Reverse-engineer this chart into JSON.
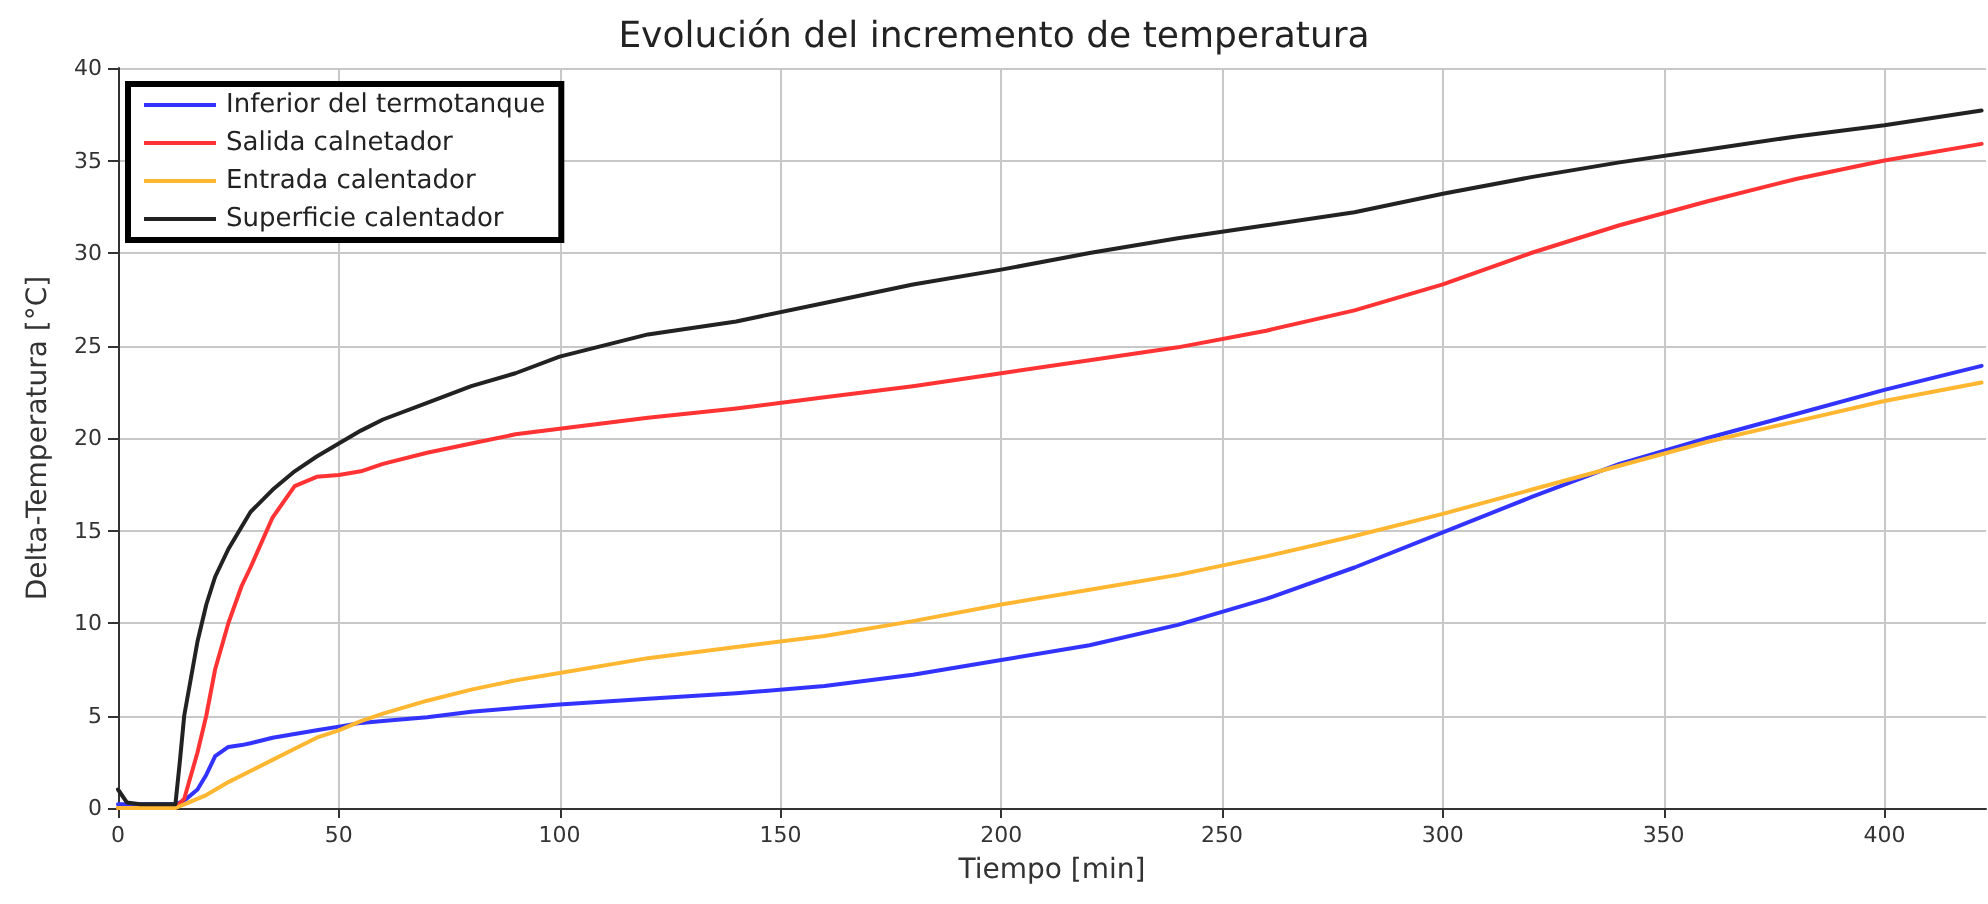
{
  "chart_data": {
    "type": "line",
    "title": "Evolución del incremento de temperatura",
    "xlabel": "Tiempo [min]",
    "ylabel": "Delta-Temperatura [°C]",
    "xlim": [
      0,
      423
    ],
    "xticks": [
      0,
      50,
      100,
      150,
      200,
      250,
      300,
      350,
      400
    ],
    "ylim": [
      0,
      40
    ],
    "yticks": [
      0,
      5,
      10,
      15,
      20,
      25,
      30,
      35,
      40
    ],
    "grid": true,
    "legend": "top left",
    "marker": "none",
    "line_style": "solid",
    "series": [
      {
        "name": "Inferior del termotanque",
        "color": "#3333ff",
        "x": [
          0,
          13,
          15,
          18,
          20,
          22,
          25,
          28,
          30,
          35,
          40,
          45,
          50,
          55,
          60,
          70,
          80,
          90,
          100,
          120,
          140,
          160,
          180,
          200,
          220,
          240,
          260,
          280,
          300,
          320,
          340,
          360,
          380,
          400,
          422
        ],
        "values": [
          0.2,
          0.2,
          0.4,
          1.0,
          1.8,
          2.8,
          3.3,
          3.4,
          3.5,
          3.8,
          4.0,
          4.2,
          4.4,
          4.6,
          4.7,
          4.9,
          5.2,
          5.4,
          5.6,
          5.9,
          6.2,
          6.6,
          7.2,
          8.0,
          8.8,
          9.9,
          11.3,
          13.0,
          14.9,
          16.8,
          18.6,
          20.0,
          21.3,
          22.6,
          23.9
        ]
      },
      {
        "name": "Salida calnetador",
        "color": "#ff3333",
        "x": [
          0,
          13,
          15,
          18,
          20,
          22,
          25,
          28,
          30,
          35,
          40,
          45,
          50,
          55,
          60,
          70,
          80,
          90,
          100,
          120,
          140,
          160,
          180,
          200,
          220,
          240,
          260,
          280,
          300,
          320,
          340,
          360,
          380,
          400,
          422
        ],
        "values": [
          0,
          0,
          0.5,
          3,
          5,
          7.5,
          10,
          12,
          13,
          15.7,
          17.4,
          17.9,
          18,
          18.2,
          18.6,
          19.2,
          19.7,
          20.2,
          20.5,
          21.1,
          21.6,
          22.2,
          22.8,
          23.5,
          24.2,
          24.9,
          25.8,
          26.9,
          28.3,
          30.0,
          31.5,
          32.8,
          34.0,
          35.0,
          35.9
        ]
      },
      {
        "name": "Entrada calentador",
        "color": "#ffb732",
        "x": [
          0,
          13,
          15,
          20,
          25,
          30,
          35,
          40,
          45,
          50,
          55,
          60,
          70,
          80,
          90,
          100,
          120,
          140,
          160,
          180,
          200,
          220,
          240,
          260,
          280,
          300,
          320,
          340,
          360,
          380,
          400,
          422
        ],
        "values": [
          0,
          0,
          0.2,
          0.7,
          1.4,
          2.0,
          2.6,
          3.2,
          3.8,
          4.2,
          4.7,
          5.1,
          5.8,
          6.4,
          6.9,
          7.3,
          8.1,
          8.7,
          9.3,
          10.1,
          11.0,
          11.8,
          12.6,
          13.6,
          14.7,
          15.9,
          17.2,
          18.5,
          19.8,
          20.9,
          22.0,
          23.0
        ]
      },
      {
        "name": "Superficie calentador",
        "color": "#222222",
        "x": [
          0,
          2,
          5,
          10,
          13,
          14,
          15,
          18,
          20,
          22,
          25,
          28,
          30,
          35,
          40,
          45,
          50,
          55,
          60,
          70,
          80,
          90,
          100,
          120,
          140,
          160,
          180,
          200,
          220,
          240,
          260,
          280,
          300,
          320,
          340,
          360,
          380,
          400,
          422
        ],
        "values": [
          1.0,
          0.3,
          0.2,
          0.2,
          0.2,
          2.5,
          5,
          9,
          11,
          12.5,
          14,
          15.2,
          16,
          17.2,
          18.2,
          19,
          19.7,
          20.4,
          21,
          21.9,
          22.8,
          23.5,
          24.4,
          25.6,
          26.3,
          27.3,
          28.3,
          29.1,
          30.0,
          30.8,
          31.5,
          32.2,
          33.2,
          34.1,
          34.9,
          35.6,
          36.3,
          36.9,
          37.7
        ]
      }
    ]
  }
}
